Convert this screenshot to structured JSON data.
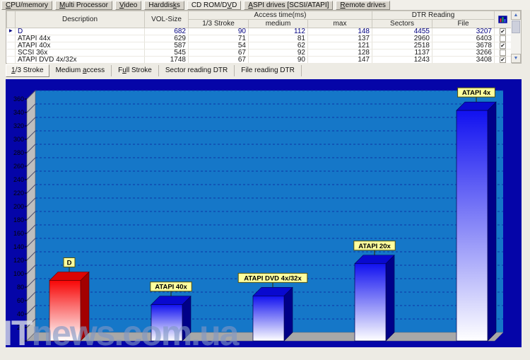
{
  "tabs_main": {
    "items": [
      {
        "label": "CPU/memory",
        "u": 0,
        "active": false
      },
      {
        "label": "Multi Processor",
        "u": 0,
        "active": false
      },
      {
        "label": "Video",
        "u": 0,
        "active": false
      },
      {
        "label": "Harddisks",
        "u": 7,
        "active": false
      },
      {
        "label": "CD ROM/DVD",
        "u": 8,
        "active": true
      },
      {
        "label": "ASPI drives [SCSI/ATAPI]",
        "u": 0,
        "active": false
      },
      {
        "label": "Remote drives",
        "u": 0,
        "active": false
      }
    ]
  },
  "table": {
    "headers": {
      "description": "Description",
      "vol_size": "VOL-Size",
      "access_group": "Access time(ms)",
      "stroke": "1/3 Stroke",
      "medium": "medium",
      "max": "max",
      "dtr_group": "DTR Reading",
      "sectors": "Sectors",
      "file": "File"
    },
    "rows": [
      {
        "description": "D",
        "vol_size": "682",
        "stroke": "90",
        "medium": "112",
        "max": "148",
        "sectors": "4455",
        "file": "3207",
        "checked": true,
        "selected": true
      },
      {
        "description": "ATAPI 44x",
        "vol_size": "629",
        "stroke": "71",
        "medium": "81",
        "max": "137",
        "sectors": "2960",
        "file": "6403",
        "checked": false,
        "selected": false
      },
      {
        "description": "ATAPI 40x",
        "vol_size": "587",
        "stroke": "54",
        "medium": "62",
        "max": "121",
        "sectors": "2518",
        "file": "3678",
        "checked": true,
        "selected": false
      },
      {
        "description": "SCSI 36x",
        "vol_size": "545",
        "stroke": "67",
        "medium": "92",
        "max": "128",
        "sectors": "1137",
        "file": "3266",
        "checked": false,
        "selected": false
      },
      {
        "description": "ATAPI DVD 4x/32x",
        "vol_size": "1748",
        "stroke": "67",
        "medium": "90",
        "max": "147",
        "sectors": "1243",
        "file": "3408",
        "checked": true,
        "selected": false
      }
    ]
  },
  "tabs_chart": {
    "items": [
      {
        "label": "1/3 Stroke",
        "u": 0,
        "active": true
      },
      {
        "label": "Medium access",
        "u": 7,
        "active": false
      },
      {
        "label": "Full Stroke",
        "u": 1,
        "active": false
      },
      {
        "label": "Sector reading DTR",
        "u": -1,
        "active": false
      },
      {
        "label": "File reading DTR",
        "u": -1,
        "active": false
      }
    ]
  },
  "chart_data": {
    "type": "bar",
    "categories": [
      "D",
      "ATAPI 40x",
      "ATAPI DVD 4x/32x",
      "ATAPI 20x",
      "ATAPI 4x"
    ],
    "values": [
      90,
      54,
      67,
      115,
      343
    ],
    "bar_colors": [
      "red",
      "blue",
      "blue",
      "blue",
      "blue"
    ],
    "ylim": [
      0,
      372
    ],
    "ytick_step": 20,
    "ytick_max": 360,
    "grid": "dashed horizontal",
    "legend": "none",
    "frame_color": "#0505A8",
    "plot_bg_color": "#1577C8",
    "gridline_color": "#0A36A6",
    "label_box_color": "#FFFF9E"
  },
  "watermark": {
    "text_primary": "IT",
    "text_secondary": "news.com.ua"
  },
  "scrollbar": {
    "up_glyph": "▲",
    "down_glyph": "▼"
  },
  "glyphs": {
    "row_indicator": "▶",
    "check": "✔"
  }
}
